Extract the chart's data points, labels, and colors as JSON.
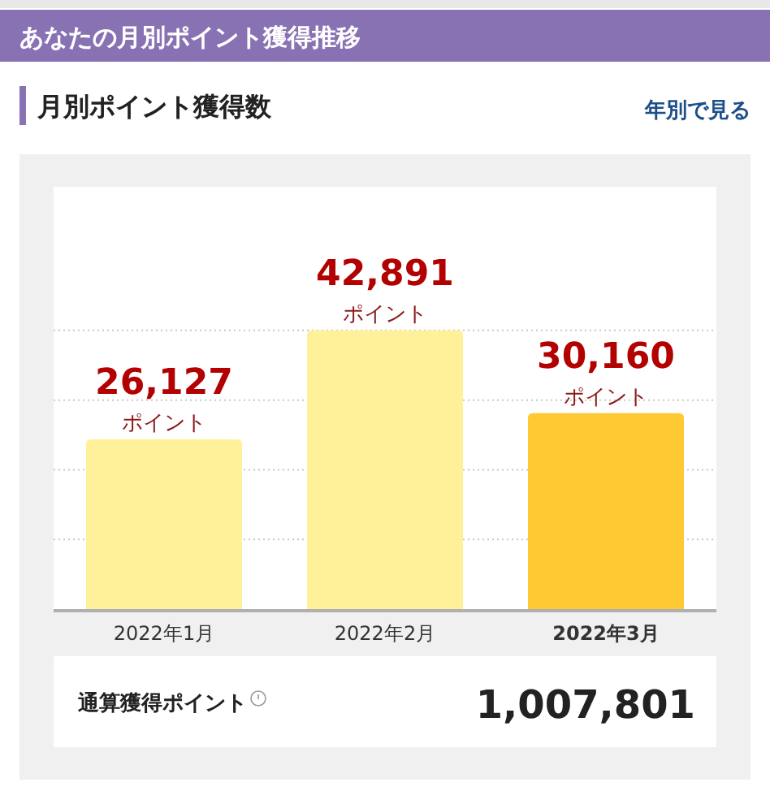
{
  "chart_data": {
    "type": "bar",
    "title": "あなたの月別ポイント獲得推移",
    "subtitle": "月別ポイント獲得数",
    "categories": [
      "2022年1月",
      "2022年2月",
      "2022年3月"
    ],
    "values": [
      26127,
      42891,
      30160
    ],
    "colors": [
      "#fff199",
      "#fff199",
      "#ffc933"
    ],
    "value_labels": [
      "26,127",
      "42,891",
      "30,160"
    ],
    "ylim": [
      0,
      65000
    ],
    "yticks": [
      {
        "value": 10723,
        "label": null
      },
      {
        "value": 21446,
        "label": null
      },
      {
        "value": 32168,
        "label": null
      },
      {
        "value": 42891,
        "label": null
      }
    ],
    "grid": "y",
    "annotations": [
      {
        "text": "ポイント",
        "x": "2022年1月",
        "y": 26127
      },
      {
        "text": "ポイント",
        "x": "2022年2月",
        "y": 42891
      },
      {
        "text": "ポイント",
        "x": "2022年3月",
        "y": 30160
      },
      "年別で見る",
      "通算獲得ポイント",
      "1,007,801"
    ]
  }
}
